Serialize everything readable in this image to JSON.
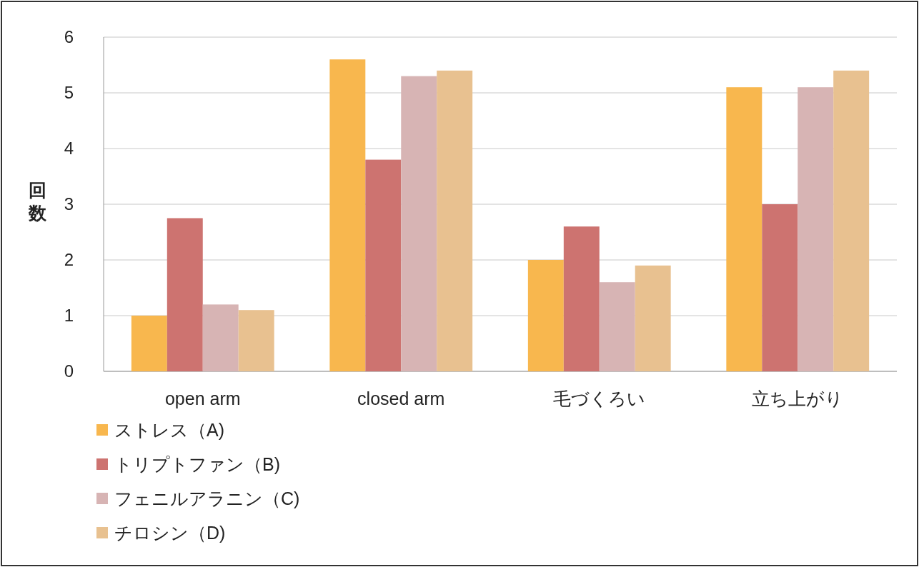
{
  "chart_data": {
    "type": "bar",
    "ylabel": "回数",
    "categories": [
      "open arm",
      "closed arm",
      "毛づくろい",
      "立ち上がり"
    ],
    "series": [
      {
        "name": "ストレス（A)",
        "color": "#f8b74e",
        "values": [
          1.0,
          5.6,
          2.0,
          5.1
        ]
      },
      {
        "name": "トリプトファン（B)",
        "color": "#cd7370",
        "values": [
          2.75,
          3.8,
          2.6,
          3.0
        ]
      },
      {
        "name": "フェニルアラニン（C)",
        "color": "#d7b4b4",
        "values": [
          1.2,
          5.3,
          1.6,
          5.1
        ]
      },
      {
        "name": "チロシン（D)",
        "color": "#e8c190",
        "values": [
          1.1,
          5.4,
          1.9,
          5.4
        ]
      }
    ],
    "ylim": [
      0,
      6
    ],
    "yticks": [
      0,
      1,
      2,
      3,
      4,
      5,
      6
    ],
    "grid": "y",
    "legend": "bottom left"
  }
}
